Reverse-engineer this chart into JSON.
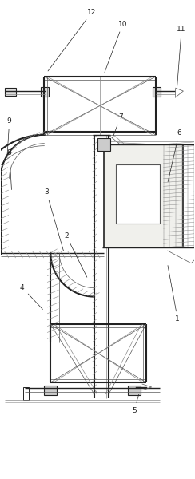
{
  "background_color": "#ffffff",
  "line_color": "#888888",
  "dark_line": "#222222",
  "mid_line": "#555555",
  "label_color": "#222222",
  "figsize": [
    2.44,
    6.0
  ],
  "dpi": 100,
  "hatch_color": "#aaaaaa"
}
